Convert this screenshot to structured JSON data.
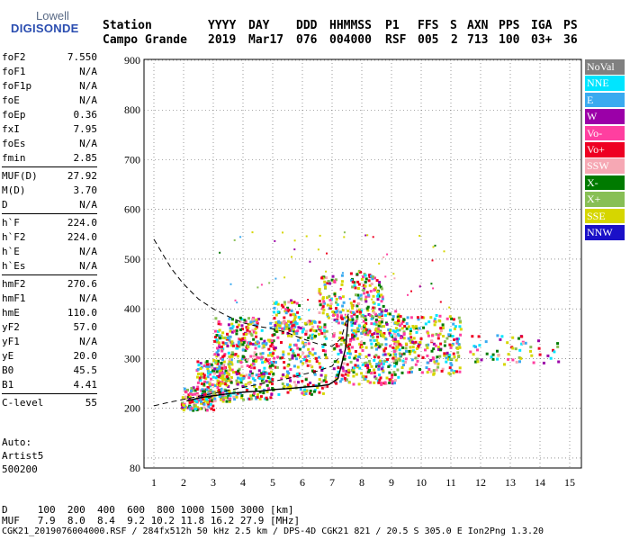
{
  "logo": {
    "top": "Lowell",
    "main": "DIGISONDE"
  },
  "header": {
    "labels": [
      "Station",
      "YYYY",
      "DAY",
      "DDD",
      "HHMMSS",
      "P1",
      "FFS",
      "S",
      "AXN",
      "PPS",
      "IGA",
      "PS"
    ],
    "values": [
      "Campo Grande",
      "2019",
      "Mar17",
      "076",
      "004000",
      "RSF",
      "005",
      "2",
      "713",
      "100",
      "03+",
      "36"
    ]
  },
  "params": [
    {
      "k": "foF2",
      "v": "7.550"
    },
    {
      "k": "foF1",
      "v": "N/A"
    },
    {
      "k": "foF1p",
      "v": "N/A"
    },
    {
      "k": "foE",
      "v": "N/A"
    },
    {
      "k": "foEp",
      "v": "0.36"
    },
    {
      "k": "fxI",
      "v": "7.95"
    },
    {
      "k": "foEs",
      "v": "N/A"
    },
    {
      "k": "fmin",
      "v": "2.85"
    },
    {
      "k": "MUF(D)",
      "v": "27.92"
    },
    {
      "k": "M(D)",
      "v": "3.70"
    },
    {
      "k": "D",
      "v": "N/A"
    },
    {
      "k": "h`F",
      "v": "224.0"
    },
    {
      "k": "h`F2",
      "v": "224.0"
    },
    {
      "k": "h`E",
      "v": "N/A"
    },
    {
      "k": "h`Es",
      "v": "N/A"
    },
    {
      "k": "hmF2",
      "v": "270.6"
    },
    {
      "k": "hmF1",
      "v": "N/A"
    },
    {
      "k": "hmE",
      "v": "110.0"
    },
    {
      "k": "yF2",
      "v": "57.0"
    },
    {
      "k": "yF1",
      "v": "N/A"
    },
    {
      "k": "yE",
      "v": "20.0"
    },
    {
      "k": "B0",
      "v": "45.5"
    },
    {
      "k": "B1",
      "v": "4.41"
    },
    {
      "k": "C-level",
      "v": "55"
    }
  ],
  "auto": {
    "title": "Auto:",
    "artist": "Artist5",
    "version": "500200"
  },
  "legend": [
    {
      "label": "NoVal",
      "color": "#808080",
      "text_color": "#ffffff"
    },
    {
      "label": "NNE",
      "color": "#00e5ff",
      "text_color": "#ffffff"
    },
    {
      "label": "E",
      "color": "#3aaaf0",
      "text_color": "#ffffff"
    },
    {
      "label": "W",
      "color": "#9b00a8",
      "text_color": "#ffffff"
    },
    {
      "label": "Vo-",
      "color": "#ff3fa0",
      "text_color": "#ffffff"
    },
    {
      "label": "Vo+",
      "color": "#ee0022",
      "text_color": "#ffffff"
    },
    {
      "label": "SSW",
      "color": "#f6a8b4",
      "text_color": "#ffffff"
    },
    {
      "label": "X-",
      "color": "#007a00",
      "text_color": "#ffffff"
    },
    {
      "label": "X+",
      "color": "#88bf55",
      "text_color": "#ffffff"
    },
    {
      "label": "SSE",
      "color": "#d6d600",
      "text_color": "#ffffff"
    },
    {
      "label": "NNW",
      "color": "#1a10c8",
      "text_color": "#ffffff"
    }
  ],
  "footer": {
    "line1": "D     100  200  400  600  800 1000 1500 3000 [km]",
    "line2": "MUF   7.9  8.0  8.4  9.2 10.2 11.8 16.2 27.9 [MHz]",
    "line3": "CGK21_2019076004000.RSF / 284fx512h 50 kHz 2.5 km / DPS-4D CGK21 821 / 20.5 S 305.0 E Ion2Png 1.3.20"
  },
  "chart_data": {
    "type": "scatter",
    "x_ticks": [
      1,
      2,
      3,
      4,
      5,
      6,
      7,
      8,
      9,
      10,
      11,
      12,
      13,
      14,
      15
    ],
    "y_ticks": [
      80,
      200,
      300,
      400,
      500,
      600,
      700,
      800,
      900
    ],
    "xlim": [
      0.9,
      15.1
    ],
    "ylim": [
      80,
      900
    ],
    "grid": true,
    "legend_position": "right",
    "profile_curve": {
      "name": "",
      "x": [
        2.1,
        2.6,
        3.1,
        3.6,
        4.1,
        4.6,
        5.1,
        5.6,
        6.1,
        6.6,
        6.9,
        7.2,
        7.45,
        7.55
      ],
      "y": [
        215,
        222,
        226,
        230,
        233,
        235,
        238,
        240,
        243,
        245,
        248,
        260,
        320,
        385
      ]
    },
    "trace_curves": [
      {
        "x": [
          1.0,
          1.3,
          1.6,
          2.0,
          2.5,
          3.0,
          3.5,
          4.0,
          4.5,
          5.0,
          5.5,
          6.0,
          6.5,
          7.0,
          7.3,
          7.55
        ],
        "y": [
          540,
          510,
          480,
          450,
          420,
          400,
          385,
          372,
          365,
          360,
          352,
          340,
          330,
          325,
          340,
          390
        ]
      },
      {
        "x": [
          1.0,
          1.5,
          2.0,
          2.5,
          3.0,
          3.5,
          4.0,
          4.5,
          5.0,
          5.5,
          6.0,
          6.5,
          7.0,
          7.2
        ],
        "y": [
          205,
          212,
          218,
          224,
          230,
          236,
          242,
          248,
          254,
          260,
          268,
          275,
          285,
          300
        ]
      }
    ],
    "echo_clusters": [
      {
        "x0": 1.9,
        "x1": 3.0,
        "y0": 198,
        "y1": 245,
        "n": 140
      },
      {
        "x0": 2.4,
        "x1": 3.6,
        "y0": 215,
        "y1": 300,
        "n": 150
      },
      {
        "x0": 3.0,
        "x1": 5.0,
        "y0": 220,
        "y1": 340,
        "n": 300
      },
      {
        "x0": 3.0,
        "x1": 4.6,
        "y0": 330,
        "y1": 385,
        "n": 110
      },
      {
        "x0": 4.8,
        "x1": 6.8,
        "y0": 230,
        "y1": 380,
        "n": 260
      },
      {
        "x0": 5.0,
        "x1": 5.9,
        "y0": 350,
        "y1": 420,
        "n": 70
      },
      {
        "x0": 6.5,
        "x1": 7.4,
        "y0": 380,
        "y1": 470,
        "n": 70
      },
      {
        "x0": 7.0,
        "x1": 9.2,
        "y0": 250,
        "y1": 400,
        "n": 330
      },
      {
        "x0": 7.6,
        "x1": 8.7,
        "y0": 350,
        "y1": 480,
        "n": 150
      },
      {
        "x0": 9.0,
        "x1": 11.3,
        "y0": 270,
        "y1": 390,
        "n": 260
      },
      {
        "x0": 11.6,
        "x1": 14.6,
        "y0": 290,
        "y1": 350,
        "n": 60
      }
    ]
  }
}
